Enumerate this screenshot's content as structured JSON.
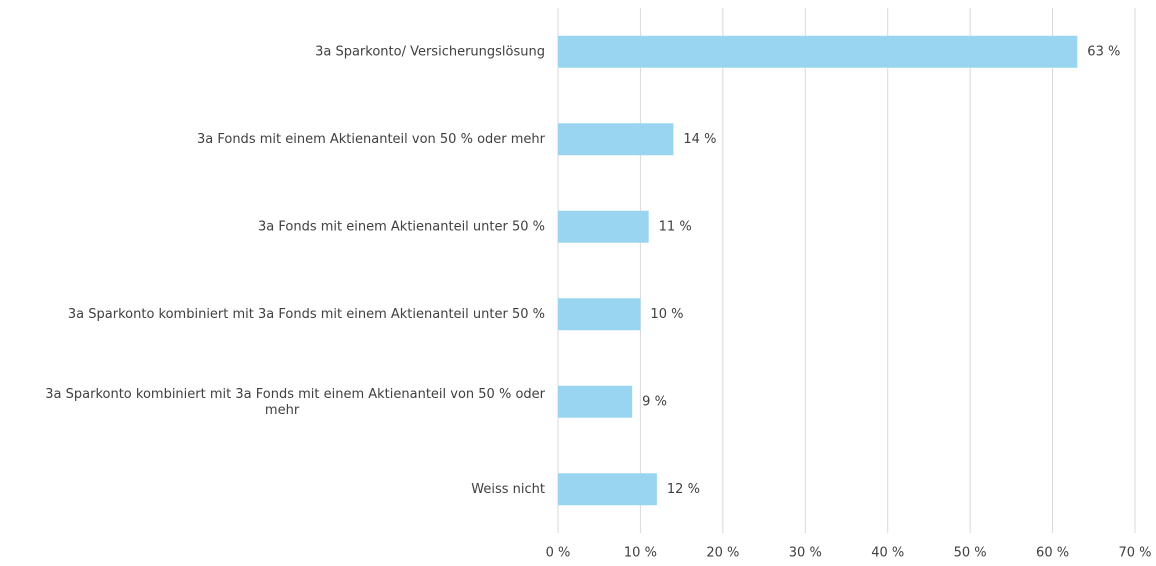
{
  "chart_data": {
    "type": "barh",
    "categories": [
      "3a Sparkonto/ Versicherungslösung",
      "3a Fonds mit einem Aktienanteil von 50 % oder mehr",
      "3a Fonds mit einem Aktienanteil unter 50 %",
      "3a Sparkonto kombiniert mit 3a Fonds mit einem Aktienanteil unter 50 %",
      "3a Sparkonto kombiniert mit 3a Fonds mit einem Aktienanteil von 50 % oder mehr",
      "Weiss nicht"
    ],
    "values": [
      63,
      14,
      11,
      10,
      9,
      12
    ],
    "value_labels": [
      "63 %",
      "14 %",
      "11 %",
      "10 %",
      "9 %",
      "12 %"
    ],
    "color": "#99d5f0",
    "xlim": [
      0,
      70
    ],
    "xticks": [
      {
        "value": 0,
        "label": "0 %"
      },
      {
        "value": 10,
        "label": "10 %"
      },
      {
        "value": 20,
        "label": "20 %"
      },
      {
        "value": 30,
        "label": "30 %"
      },
      {
        "value": 40,
        "label": "40 %"
      },
      {
        "value": 50,
        "label": "50 %"
      },
      {
        "value": 60,
        "label": "60 %"
      },
      {
        "value": 70,
        "label": "70 %"
      }
    ],
    "grid": true
  }
}
